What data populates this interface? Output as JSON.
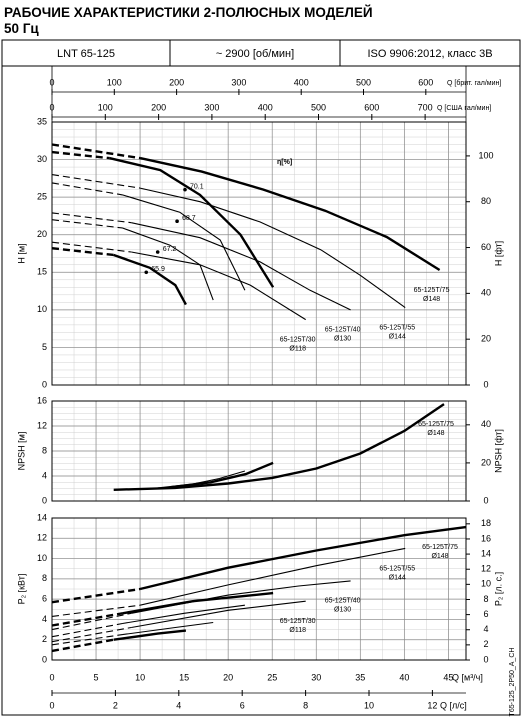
{
  "header": {
    "title": "РАБОЧИЕ ХАРАКТЕРИСТИКИ 2-ПОЛЮСНЫХ МОДЕЛЕЙ",
    "subtitle": "50 Гц",
    "cells": [
      "LNT 65-125",
      "~ 2900 [об/мин]",
      "ISO 9906:2012, класс 3B"
    ]
  },
  "code": "T65-125_2P50_A_CH",
  "chart_data": [
    {
      "type": "line",
      "ylabel": "H [м]",
      "y2label": "H [фт]",
      "xlim": [
        0,
        47
      ],
      "xticks": [
        0,
        5,
        10,
        15,
        20,
        25,
        30,
        35,
        40,
        45
      ],
      "ylim": [
        0,
        35
      ],
      "yticks": [
        0,
        5,
        10,
        15,
        20,
        25,
        30,
        35
      ],
      "y2lim": [
        0,
        114.8
      ],
      "y2ticks": [
        0,
        20,
        40,
        60,
        80,
        100
      ],
      "grid": true,
      "minor_grid": {
        "x": 2.5,
        "y": 1
      },
      "top_axes": [
        {
          "label": "Q [брит. гал/мин]",
          "xlim": [
            0,
            664.5
          ],
          "xticks": [
            0,
            100,
            200,
            300,
            400,
            500,
            600
          ]
        },
        {
          "label": "Q [США гал/мин]",
          "xlim": [
            0,
            776.7
          ],
          "xticks": [
            0,
            100,
            200,
            300,
            400,
            500,
            600,
            700
          ]
        }
      ],
      "series": [
        {
          "x": [
            0,
            5,
            10,
            17,
            24,
            31,
            38,
            44
          ],
          "values": [
            32,
            31.1,
            30.2,
            28.4,
            26,
            23.2,
            19.7,
            15.3
          ],
          "dashed_to": 10,
          "weight": "thick",
          "label": "65-125T/75",
          "diameter": "Ø148"
        },
        {
          "x": [
            0,
            6.5,
            12.3,
            16.8,
            21.4,
            25.1
          ],
          "values": [
            31,
            30.2,
            28.6,
            25.3,
            20,
            13
          ],
          "dashed_to": 6.5,
          "weight": "thick"
        },
        {
          "x": [
            0,
            10,
            16.8,
            23.6,
            30.5,
            35,
            40.1
          ],
          "values": [
            28,
            26.2,
            24.4,
            21.7,
            18,
            14.6,
            10.3
          ],
          "dashed_to": 10,
          "weight": "thin",
          "label": "65-125T/55",
          "diameter": "Ø144"
        },
        {
          "x": [
            0,
            8,
            14.5,
            19.1,
            21.9
          ],
          "values": [
            26.9,
            25.3,
            23,
            19.3,
            12.6
          ],
          "dashed_to": 8,
          "weight": "thin"
        },
        {
          "x": [
            0,
            9,
            16.8,
            23.6,
            29.3,
            33.9
          ],
          "values": [
            22.9,
            21.6,
            19.6,
            16.4,
            12.6,
            10
          ],
          "dashed_to": 9,
          "weight": "thin",
          "label": "65-125T/40",
          "diameter": "Ø130"
        },
        {
          "x": [
            0,
            8,
            13.4,
            16.8,
            18.3
          ],
          "values": [
            22,
            20.9,
            18.6,
            16,
            11.3
          ],
          "dashed_to": 8,
          "weight": "thin"
        },
        {
          "x": [
            0,
            9,
            16.8,
            22.5,
            28.8
          ],
          "values": [
            19,
            17.7,
            16,
            13.3,
            8.7
          ],
          "dashed_to": 9,
          "weight": "thin",
          "label": "65-125T/30",
          "diameter": "Ø118"
        },
        {
          "x": [
            0,
            7,
            11.1,
            14,
            15.2
          ],
          "values": [
            18.2,
            17.3,
            15.6,
            13.3,
            10.7
          ],
          "dashed_to": 7,
          "weight": "thick"
        }
      ],
      "efficiency_label": "η[%]",
      "efficiency": [
        {
          "x": 15.1,
          "y": 26,
          "eta": 70.1
        },
        {
          "x": 14.2,
          "y": 21.8,
          "eta": 68.7
        },
        {
          "x": 12,
          "y": 17.7,
          "eta": 67.2
        },
        {
          "x": 10.7,
          "y": 15,
          "eta": 65.9
        }
      ]
    },
    {
      "type": "line",
      "ylabel": "NPSH [м]",
      "y2label": "NPSH [фт]",
      "xlim": [
        0,
        47
      ],
      "xticks": [
        0,
        5,
        10,
        15,
        20,
        25,
        30,
        35,
        40,
        45
      ],
      "ylim": [
        0,
        16
      ],
      "yticks": [
        0,
        4,
        8,
        12,
        16
      ],
      "y2lim": [
        0,
        52.5
      ],
      "y2ticks": [
        0,
        20,
        40
      ],
      "grid": true,
      "minor_grid": {
        "x": 2.5,
        "y": 1
      },
      "series": [
        {
          "x": [
            7,
            14,
            20,
            25,
            30,
            35,
            40,
            44.5
          ],
          "values": [
            1.8,
            2.1,
            2.8,
            3.7,
            5.2,
            7.6,
            11.2,
            15.5
          ],
          "weight": "thick",
          "label": "65-125T/75",
          "diameter": "Ø148"
        },
        {
          "x": [
            13.4,
            18,
            22,
            25.1
          ],
          "values": [
            2.2,
            3,
            4.3,
            6.1
          ],
          "weight": "thick"
        },
        {
          "x": [
            12,
            16,
            19,
            21.9
          ],
          "values": [
            2.1,
            2.7,
            3.6,
            4.8
          ],
          "weight": "thin"
        }
      ]
    },
    {
      "type": "line",
      "ylabel": "P₂ [кВт]",
      "y2label": "P₂ [л. с.]",
      "xlabel": "Q [м³/ч]",
      "xlim": [
        0,
        47
      ],
      "xticks": [
        0,
        5,
        10,
        15,
        20,
        25,
        30,
        35,
        40,
        45
      ],
      "ylim": [
        0,
        14
      ],
      "yticks": [
        0,
        2,
        4,
        6,
        8,
        10,
        12,
        14
      ],
      "y2lim": [
        0,
        18.77
      ],
      "y2ticks": [
        0,
        2,
        4,
        6,
        8,
        10,
        12,
        14,
        16,
        18
      ],
      "grid": true,
      "minor_grid": {
        "x": 2.5,
        "y": 1
      },
      "x2axis": {
        "label": "Q [л/с]",
        "xlim": [
          0,
          13.06
        ],
        "xticks": [
          0,
          2,
          4,
          6,
          8,
          10,
          12
        ]
      },
      "series": [
        {
          "x": [
            0,
            10,
            20,
            30,
            40,
            47
          ],
          "values": [
            5.7,
            7,
            9.1,
            10.8,
            12.3,
            13.1
          ],
          "dashed_to": 10,
          "weight": "thick",
          "label": "65-125T/75",
          "diameter": "Ø148"
        },
        {
          "x": [
            0,
            8,
            16,
            25.1
          ],
          "values": [
            3.4,
            4.6,
            5.8,
            6.6
          ],
          "dashed_to": 8,
          "weight": "thick"
        },
        {
          "x": [
            0,
            10,
            20,
            30,
            40.1
          ],
          "values": [
            4.3,
            5.4,
            7.4,
            9.3,
            11
          ],
          "dashed_to": 10,
          "weight": "thin",
          "label": "65-125T/55",
          "diameter": "Ø144"
        },
        {
          "x": [
            0,
            8,
            15,
            21.9
          ],
          "values": [
            2.3,
            3.6,
            4.6,
            5.4
          ],
          "dashed_to": 8,
          "weight": "thin"
        },
        {
          "x": [
            0,
            9,
            20,
            28,
            33.9
          ],
          "values": [
            3,
            4.6,
            6.4,
            7.3,
            7.8
          ],
          "dashed_to": 9,
          "weight": "thin",
          "label": "65-125T/40",
          "diameter": "Ø130"
        },
        {
          "x": [
            0,
            8,
            14,
            18.3
          ],
          "values": [
            1.5,
            2.5,
            3.2,
            3.7
          ],
          "dashed_to": 8,
          "weight": "thin"
        },
        {
          "x": [
            0,
            9,
            20,
            28.8
          ],
          "values": [
            1.8,
            3.2,
            4.9,
            5.8
          ],
          "dashed_to": 9,
          "weight": "thin",
          "label": "65-125T/30",
          "diameter": "Ø118"
        },
        {
          "x": [
            0,
            7,
            12,
            15.2
          ],
          "values": [
            0.9,
            2,
            2.6,
            2.9
          ],
          "dashed_to": 7,
          "weight": "thick"
        }
      ]
    }
  ]
}
